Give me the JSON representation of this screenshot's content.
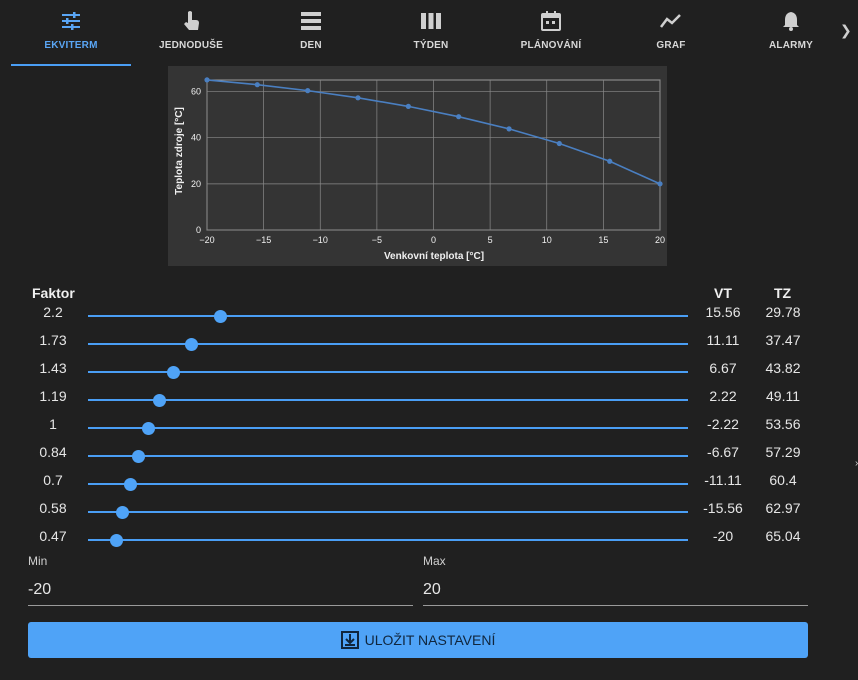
{
  "tabs": [
    {
      "label": "EKVITERM",
      "icon": "sliders-icon",
      "active": true
    },
    {
      "label": "JEDNODUŠE",
      "icon": "touch-hand-icon",
      "active": false
    },
    {
      "label": "DEN",
      "icon": "day-list-icon",
      "active": false
    },
    {
      "label": "TÝDEN",
      "icon": "week-columns-icon",
      "active": false
    },
    {
      "label": "PLÁNOVÁNÍ",
      "icon": "calendar-icon",
      "active": false
    },
    {
      "label": "GRAF",
      "icon": "line-chart-icon",
      "active": false
    },
    {
      "label": "ALARMY",
      "icon": "bell-icon",
      "active": false
    }
  ],
  "colors": {
    "accent": "#4fa3f7",
    "background": "#202020",
    "chart_bg": "#343434",
    "line": "#4a7fc1"
  },
  "chart_data": {
    "type": "line",
    "xlabel": "Venkovní teplota [°C]",
    "ylabel": "Teplota zdroje [°C]",
    "xlim": [
      -20,
      20
    ],
    "ylim": [
      0,
      65
    ],
    "x_ticks": [
      -20,
      -15,
      -10,
      -5,
      0,
      5,
      10,
      15,
      20
    ],
    "y_ticks": [
      0,
      20,
      40,
      60
    ],
    "grid": true,
    "series": [
      {
        "x": [
          -20,
          -15.56,
          -11.11,
          -6.67,
          -2.22,
          2.22,
          6.67,
          11.11,
          15.56,
          20
        ],
        "y": [
          65.04,
          62.97,
          60.4,
          57.29,
          53.56,
          49.11,
          43.82,
          37.47,
          29.78,
          20
        ]
      }
    ]
  },
  "table": {
    "faktor_header": "Faktor",
    "vt_header": "VT",
    "tz_header": "TZ",
    "rows": [
      {
        "faktor": "2.2",
        "vt": "15.56",
        "tz": "29.78",
        "slider": 0.22
      },
      {
        "faktor": "1.73",
        "vt": "11.11",
        "tz": "37.47",
        "slider": 0.173
      },
      {
        "faktor": "1.43",
        "vt": "6.67",
        "tz": "43.82",
        "slider": 0.143
      },
      {
        "faktor": "1.19",
        "vt": "2.22",
        "tz": "49.11",
        "slider": 0.119
      },
      {
        "faktor": "1",
        "vt": "-2.22",
        "tz": "53.56",
        "slider": 0.1
      },
      {
        "faktor": "0.84",
        "vt": "-6.67",
        "tz": "57.29",
        "slider": 0.084
      },
      {
        "faktor": "0.7",
        "vt": "-11.11",
        "tz": "60.4",
        "slider": 0.07
      },
      {
        "faktor": "0.58",
        "vt": "-15.56",
        "tz": "62.97",
        "slider": 0.058
      },
      {
        "faktor": "0.47",
        "vt": "-20",
        "tz": "65.04",
        "slider": 0.047
      }
    ]
  },
  "min_field": {
    "label": "Min",
    "value": "-20"
  },
  "max_field": {
    "label": "Max",
    "value": "20"
  },
  "save_button": {
    "label": "ULOŽIT NASTAVENÍ",
    "icon": "save-download-icon"
  },
  "nav_more_icon": "chevron-right-icon",
  "side_mark": "›"
}
